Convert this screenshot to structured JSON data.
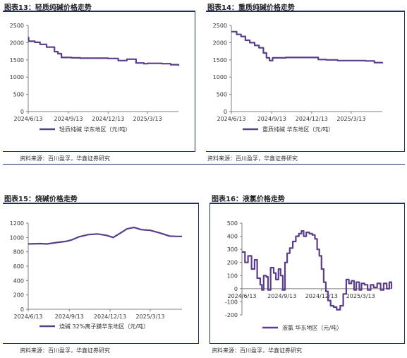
{
  "colors": {
    "series": "#5a3e8c",
    "frame": "#1c2d6b",
    "axis": "#7f7f7f",
    "text": "#333333"
  },
  "panels": [
    {
      "title": "图表13：轻质纯碱价格走势",
      "source": "资料来源：百川盈孚，华鑫证券研究"
    },
    {
      "title": "图表14：重质纯碱价格走势",
      "source": "资料来源：百川盈孚，华鑫证券研究"
    },
    {
      "title": "图表15：烧碱价格走势",
      "source": "资料来源：百川盈孚，华鑫证券研究"
    },
    {
      "title": "图表16：液氯价格走势",
      "source": "资料来源：百川盈孚，华鑫证券研究"
    }
  ],
  "chart_data": [
    {
      "type": "line",
      "x_ticks": [
        "2024/6/13",
        "2024/9/13",
        "2024/12/13",
        "2025/3/13"
      ],
      "x_range": [
        "2024/6/13",
        "2025/5/23"
      ],
      "ylim": [
        0,
        2500
      ],
      "y_ticks": [
        0,
        500,
        1000,
        1500,
        2000,
        2500
      ],
      "series": [
        {
          "name": "轻质纯碱 华东地区（元/吨）",
          "step": true,
          "points": [
            [
              "2024/6/13",
              2150
            ],
            [
              "2024/6/14",
              2040
            ],
            [
              "2024/6/28",
              2010
            ],
            [
              "2024/7/10",
              1950
            ],
            [
              "2024/7/25",
              1870
            ],
            [
              "2024/8/12",
              1740
            ],
            [
              "2024/8/20",
              1680
            ],
            [
              "2024/8/28",
              1570
            ],
            [
              "2024/9/20",
              1560
            ],
            [
              "2024/10/10",
              1550
            ],
            [
              "2024/12/13",
              1540
            ],
            [
              "2024/12/28",
              1540
            ],
            [
              "2025/1/5",
              1480
            ],
            [
              "2025/1/25",
              1520
            ],
            [
              "2025/2/15",
              1410
            ],
            [
              "2025/3/5",
              1390
            ],
            [
              "2025/3/13",
              1400
            ],
            [
              "2025/4/15",
              1390
            ],
            [
              "2025/5/5",
              1360
            ],
            [
              "2025/5/23",
              1330
            ]
          ]
        }
      ]
    },
    {
      "type": "line",
      "x_ticks": [
        "2024/6/13",
        "2024/9/13",
        "2024/12/13",
        "2025/3/13"
      ],
      "x_range": [
        "2024/6/13",
        "2025/5/23"
      ],
      "ylim": [
        0,
        2500
      ],
      "y_ticks": [
        0,
        500,
        1000,
        1500,
        2000,
        2500
      ],
      "series": [
        {
          "name": "重质纯碱 华东地区（元/吨）",
          "step": true,
          "points": [
            [
              "2024/6/13",
              2320
            ],
            [
              "2024/6/25",
              2240
            ],
            [
              "2024/7/5",
              2180
            ],
            [
              "2024/7/15",
              2070
            ],
            [
              "2024/7/25",
              2000
            ],
            [
              "2024/8/5",
              1920
            ],
            [
              "2024/8/15",
              1850
            ],
            [
              "2024/8/25",
              1700
            ],
            [
              "2024/9/1",
              1560
            ],
            [
              "2024/9/8",
              1480
            ],
            [
              "2024/9/15",
              1560
            ],
            [
              "2024/10/15",
              1570
            ],
            [
              "2024/12/13",
              1570
            ],
            [
              "2024/12/28",
              1510
            ],
            [
              "2025/1/15",
              1500
            ],
            [
              "2025/2/10",
              1480
            ],
            [
              "2025/3/13",
              1480
            ],
            [
              "2025/4/15",
              1470
            ],
            [
              "2025/5/5",
              1420
            ],
            [
              "2025/5/23",
              1400
            ]
          ]
        }
      ]
    },
    {
      "type": "line",
      "x_ticks": [
        "2024/6/13",
        "2024/9/13",
        "2024/12/13",
        "2025/3/13"
      ],
      "x_range": [
        "2024/6/13",
        "2025/5/23"
      ],
      "ylim": [
        0,
        1200
      ],
      "y_ticks": [
        0,
        200,
        400,
        600,
        800,
        1000,
        1200
      ],
      "series": [
        {
          "name": "烧碱 32%离子膜华东地区（元/吨）",
          "step": false,
          "points": [
            [
              "2024/6/13",
              910
            ],
            [
              "2024/7/10",
              915
            ],
            [
              "2024/7/25",
              910
            ],
            [
              "2024/8/15",
              930
            ],
            [
              "2024/9/5",
              945
            ],
            [
              "2024/9/20",
              970
            ],
            [
              "2024/10/5",
              1010
            ],
            [
              "2024/10/25",
              1040
            ],
            [
              "2024/11/15",
              1050
            ],
            [
              "2024/12/5",
              1030
            ],
            [
              "2024/12/20",
              1000
            ],
            [
              "2025/1/5",
              1060
            ],
            [
              "2025/1/20",
              1120
            ],
            [
              "2025/2/5",
              1140
            ],
            [
              "2025/2/20",
              1110
            ],
            [
              "2025/3/13",
              1100
            ],
            [
              "2025/4/5",
              1060
            ],
            [
              "2025/4/25",
              1020
            ],
            [
              "2025/5/10",
              1015
            ],
            [
              "2025/5/23",
              1015
            ]
          ]
        }
      ]
    },
    {
      "type": "line",
      "x_ticks": [
        "2024/6/13",
        "2024/9/13",
        "2024/12/13",
        "2025/3/13"
      ],
      "x_range": [
        "2024/6/13",
        "2025/5/23"
      ],
      "ylim": [
        -200,
        500
      ],
      "y_ticks": [
        -200,
        -100,
        0,
        100,
        200,
        300,
        400,
        500
      ],
      "series": [
        {
          "name": "液氯 华东地区（元/吨）",
          "step": true,
          "points": [
            [
              "2024/6/13",
              280
            ],
            [
              "2024/6/20",
              200
            ],
            [
              "2024/6/27",
              250
            ],
            [
              "2024/7/5",
              150
            ],
            [
              "2024/7/12",
              220
            ],
            [
              "2024/7/18",
              80
            ],
            [
              "2024/7/25",
              30
            ],
            [
              "2024/7/29",
              -10
            ],
            [
              "2024/8/2",
              100
            ],
            [
              "2024/8/8",
              90
            ],
            [
              "2024/8/12",
              -10
            ],
            [
              "2024/8/18",
              160
            ],
            [
              "2024/8/25",
              120
            ],
            [
              "2024/8/30",
              70
            ],
            [
              "2024/9/5",
              150
            ],
            [
              "2024/9/10",
              100
            ],
            [
              "2024/9/15",
              -10
            ],
            [
              "2024/9/20",
              200
            ],
            [
              "2024/9/25",
              270
            ],
            [
              "2024/10/1",
              310
            ],
            [
              "2024/10/8",
              360
            ],
            [
              "2024/10/15",
              400
            ],
            [
              "2024/10/22",
              420
            ],
            [
              "2024/10/28",
              440
            ],
            [
              "2024/11/2",
              400
            ],
            [
              "2024/11/8",
              430
            ],
            [
              "2024/11/15",
              420
            ],
            [
              "2024/11/22",
              410
            ],
            [
              "2024/11/28",
              380
            ],
            [
              "2024/12/3",
              300
            ],
            [
              "2024/12/8",
              250
            ],
            [
              "2024/12/13",
              150
            ],
            [
              "2024/12/18",
              50
            ],
            [
              "2024/12/23",
              -20
            ],
            [
              "2024/12/28",
              -90
            ],
            [
              "2025/1/3",
              -130
            ],
            [
              "2025/1/10",
              -140
            ],
            [
              "2025/1/17",
              -160
            ],
            [
              "2025/1/25",
              -130
            ],
            [
              "2025/2/1",
              -40
            ],
            [
              "2025/2/8",
              70
            ],
            [
              "2025/2/14",
              40
            ],
            [
              "2025/2/20",
              60
            ],
            [
              "2025/2/26",
              -10
            ],
            [
              "2025/3/3",
              50
            ],
            [
              "2025/3/10",
              -10
            ],
            [
              "2025/3/15",
              40
            ],
            [
              "2025/3/22",
              30
            ],
            [
              "2025/3/29",
              -10
            ],
            [
              "2025/4/5",
              30
            ],
            [
              "2025/4/12",
              10
            ],
            [
              "2025/4/20",
              40
            ],
            [
              "2025/4/28",
              -10
            ],
            [
              "2025/5/5",
              40
            ],
            [
              "2025/5/12",
              0
            ],
            [
              "2025/5/18",
              50
            ],
            [
              "2025/5/23",
              0
            ]
          ]
        }
      ]
    }
  ]
}
